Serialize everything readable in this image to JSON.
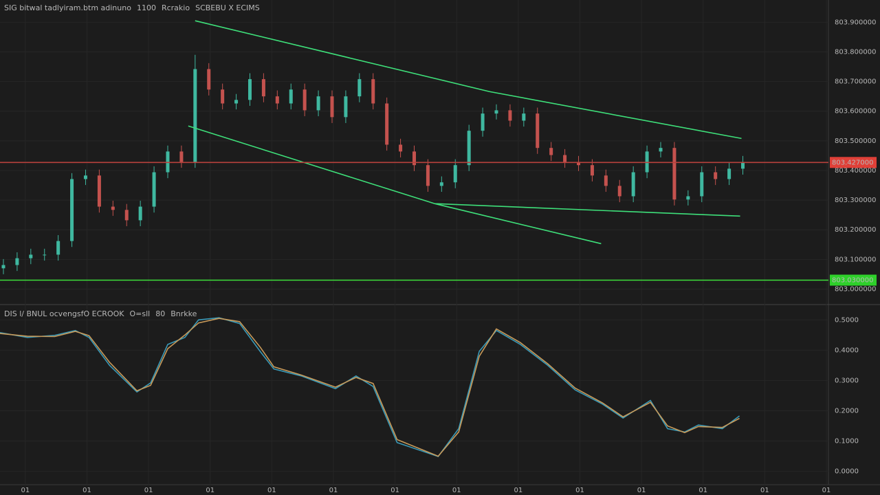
{
  "chart_data": [
    {
      "type": "candlestick",
      "title": [
        "SIG bitwal tadlyiram.btm adinuno",
        "1100",
        "Rcrakio",
        "SCBEBU X ECIMS"
      ],
      "title_colors": [
        "#c8c8c8",
        "#4fd08a",
        "#4fd08a",
        "#3fb8a8"
      ],
      "up_color": "#3fb8a0",
      "down_color": "#c4524e",
      "xlim": [
        -0.25,
        60.25
      ],
      "xticks": [
        {
          "value": 1.6,
          "label": "01"
        },
        {
          "value": 6.1,
          "label": "01"
        },
        {
          "value": 10.6,
          "label": "01"
        },
        {
          "value": 15.1,
          "label": "01"
        },
        {
          "value": 19.6,
          "label": "01"
        },
        {
          "value": 24.1,
          "label": "01"
        },
        {
          "value": 28.6,
          "label": "01"
        },
        {
          "value": 33.1,
          "label": "01"
        },
        {
          "value": 37.6,
          "label": "01"
        },
        {
          "value": 42.1,
          "label": "01"
        },
        {
          "value": 46.6,
          "label": "01"
        },
        {
          "value": 51.1,
          "label": "01"
        },
        {
          "value": 55.6,
          "label": "01"
        },
        {
          "value": 60.1,
          "label": "01"
        }
      ],
      "ylim": [
        802.95,
        803.975
      ],
      "yticks": [
        {
          "value": 803.9,
          "label": "803.900000"
        },
        {
          "value": 803.8,
          "label": "803.800000"
        },
        {
          "value": 803.7,
          "label": "803.700000"
        },
        {
          "value": 803.6,
          "label": "803.600000"
        },
        {
          "value": 803.5,
          "label": "803.500000"
        },
        {
          "value": 803.4,
          "label": "803.400000"
        },
        {
          "value": 803.3,
          "label": "803.300000"
        },
        {
          "value": 803.2,
          "label": "803.200000"
        },
        {
          "value": 803.1,
          "label": "803.100000"
        },
        {
          "value": 803.0,
          "label": "803.000000"
        }
      ],
      "grid": true,
      "open": [
        803.07,
        803.081,
        803.104,
        803.116,
        803.116,
        803.162,
        803.371,
        803.383,
        803.278,
        803.267,
        803.232,
        803.278,
        803.394,
        803.464,
        803.429,
        803.742,
        803.673,
        803.626,
        803.638,
        803.708,
        803.65,
        803.626,
        803.673,
        803.603,
        803.65,
        803.58,
        803.65,
        803.708,
        803.626,
        803.487,
        803.464,
        803.418,
        803.348,
        803.36,
        803.418,
        803.534,
        803.592,
        803.603,
        803.568,
        803.592,
        803.476,
        803.452,
        803.429,
        803.418,
        803.383,
        803.348,
        803.313,
        803.394,
        803.464,
        803.476,
        803.302,
        803.313,
        803.394,
        803.371,
        803.406
      ],
      "high": [
        803.101,
        803.124,
        803.136,
        803.136,
        803.182,
        803.391,
        803.403,
        803.403,
        803.298,
        803.287,
        803.298,
        803.414,
        803.484,
        803.484,
        803.79,
        803.762,
        803.693,
        803.658,
        803.728,
        803.728,
        803.67,
        803.693,
        803.693,
        803.67,
        803.67,
        803.67,
        803.728,
        803.728,
        803.646,
        803.507,
        803.484,
        803.438,
        803.38,
        803.438,
        803.554,
        803.612,
        803.623,
        803.623,
        803.612,
        803.612,
        803.496,
        803.472,
        803.449,
        803.438,
        803.403,
        803.368,
        803.414,
        803.484,
        803.496,
        803.496,
        803.333,
        803.414,
        803.414,
        803.426,
        803.449
      ],
      "low": [
        803.05,
        803.061,
        803.084,
        803.096,
        803.096,
        803.142,
        803.351,
        803.258,
        803.247,
        803.212,
        803.212,
        803.258,
        803.374,
        803.409,
        803.409,
        803.653,
        803.606,
        803.606,
        803.618,
        803.63,
        803.606,
        803.606,
        803.583,
        803.583,
        803.56,
        803.56,
        803.63,
        803.606,
        803.467,
        803.444,
        803.398,
        803.328,
        803.328,
        803.34,
        803.398,
        803.514,
        803.572,
        803.548,
        803.548,
        803.456,
        803.432,
        803.409,
        803.398,
        803.363,
        803.328,
        803.293,
        803.293,
        803.374,
        803.444,
        803.282,
        803.282,
        803.293,
        803.351,
        803.351,
        803.386
      ],
      "close": [
        803.081,
        803.104,
        803.116,
        803.116,
        803.162,
        803.371,
        803.383,
        803.278,
        803.267,
        803.232,
        803.278,
        803.394,
        803.464,
        803.429,
        803.742,
        803.673,
        803.626,
        803.638,
        803.708,
        803.65,
        803.626,
        803.673,
        803.603,
        803.65,
        803.58,
        803.65,
        803.708,
        803.626,
        803.487,
        803.464,
        803.418,
        803.348,
        803.36,
        803.418,
        803.534,
        803.592,
        803.603,
        803.568,
        803.592,
        803.476,
        803.452,
        803.429,
        803.418,
        803.383,
        803.348,
        803.313,
        803.394,
        803.464,
        803.476,
        803.302,
        803.313,
        803.394,
        803.371,
        803.406,
        803.429
      ],
      "trendlines": [
        {
          "color": "#3ee07a",
          "x": [
            14,
            35.5,
            53.9
          ],
          "values": [
            803.905,
            803.666,
            803.508
          ]
        },
        {
          "color": "#3ee07a",
          "x": [
            13.5,
            31.5,
            43.65
          ],
          "values": [
            803.55,
            803.288,
            803.153
          ]
        },
        {
          "color": "#3ee07a",
          "x": [
            31.5,
            53.8
          ],
          "values": [
            803.288,
            803.246
          ]
        }
      ],
      "hlines": [
        {
          "value": 803.427,
          "color": "#b8413c",
          "label": "803.427000",
          "tag_color": "#e04038"
        },
        {
          "value": 803.03,
          "color": "#3ee03a",
          "label": "803.030000",
          "tag_color": "#2ed02a"
        }
      ]
    },
    {
      "type": "line",
      "title": [
        "DIS l/ BNUL ocvengsfO ECROOK",
        "O=sll",
        "80",
        "Bnrkke"
      ],
      "title_colors": [
        "#c8c8c8",
        "#3fb8a8",
        "#4fd08a",
        "#4fd08a"
      ],
      "xlim": [
        -0.25,
        60.25
      ],
      "ylim": [
        -0.044,
        0.546
      ],
      "yticks": [
        {
          "value": 0.5,
          "label": "0.5000"
        },
        {
          "value": 0.4,
          "label": "0.4000"
        },
        {
          "value": 0.3,
          "label": "0.3000"
        },
        {
          "value": 0.2,
          "label": "0.2000"
        },
        {
          "value": 0.1,
          "label": "0.1000"
        },
        {
          "value": 0.0,
          "label": "0.0000"
        }
      ],
      "grid": true,
      "x": [
        -0.25,
        1.75,
        3.75,
        5.25,
        6.25,
        7.75,
        9.75,
        10.75,
        12,
        13.25,
        14.25,
        15.75,
        17.25,
        18.75,
        19.75,
        21.75,
        24.25,
        25.75,
        27,
        28.75,
        31.75,
        33.25,
        34.75,
        36,
        37.75,
        39.75,
        41.75,
        43.75,
        45.25,
        47.25,
        48.5,
        49.75,
        50.75,
        52.5,
        53.75
      ],
      "series": [
        {
          "color": "#3a9ab8",
          "values": [
            0.458,
            0.442,
            0.449,
            0.465,
            0.442,
            0.35,
            0.262,
            0.292,
            0.419,
            0.442,
            0.5,
            0.507,
            0.488,
            0.396,
            0.338,
            0.315,
            0.273,
            0.315,
            0.28,
            0.095,
            0.049,
            0.141,
            0.396,
            0.465,
            0.419,
            0.35,
            0.269,
            0.222,
            0.176,
            0.234,
            0.141,
            0.13,
            0.153,
            0.141,
            0.183
          ]
        },
        {
          "color": "#c89a5a",
          "values": [
            0.455,
            0.446,
            0.445,
            0.462,
            0.448,
            0.36,
            0.266,
            0.284,
            0.405,
            0.45,
            0.49,
            0.505,
            0.494,
            0.41,
            0.345,
            0.318,
            0.278,
            0.31,
            0.29,
            0.105,
            0.05,
            0.13,
            0.38,
            0.47,
            0.425,
            0.355,
            0.275,
            0.226,
            0.18,
            0.228,
            0.15,
            0.128,
            0.148,
            0.145,
            0.175
          ]
        }
      ]
    }
  ]
}
